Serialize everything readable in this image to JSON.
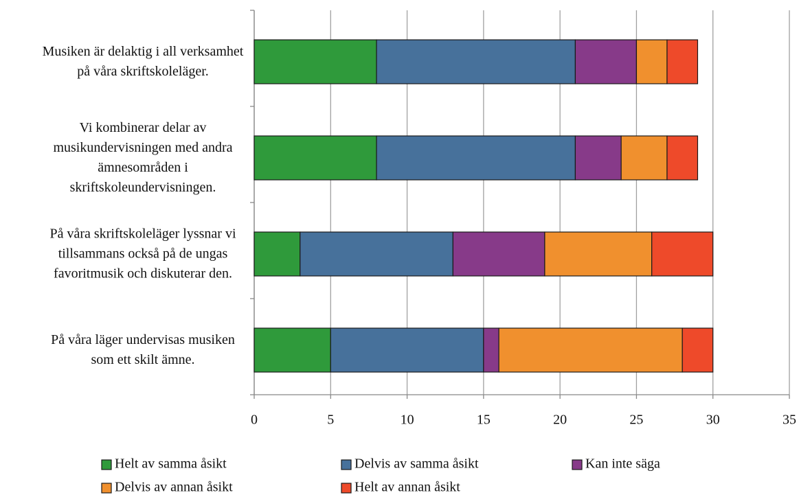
{
  "chart_data": {
    "type": "stacked-barh",
    "categories": [
      "Musiken är delaktig i all verksamhet på våra skriftskoleläger.",
      "Vi kombinerar delar av musikundervisningen med andra ämnesområden i skriftskoleundervisningen.",
      "På våra skriftskoleläger lyssnar vi tillsammans också på de ungas favoritmusik och diskuterar den.",
      "På våra läger undervisas musiken som ett skilt ämne."
    ],
    "series": [
      {
        "name": "Helt av samma åsikt",
        "color": "#2f9a3b",
        "values": [
          8,
          8,
          3,
          5
        ]
      },
      {
        "name": "Delvis av samma åsikt",
        "color": "#47719b",
        "values": [
          13,
          13,
          10,
          10
        ]
      },
      {
        "name": "Kan inte säga",
        "color": "#873a89",
        "values": [
          4,
          3,
          6,
          1
        ]
      },
      {
        "name": "Delvis av annan åsikt",
        "color": "#f0902e",
        "values": [
          2,
          3,
          7,
          12
        ]
      },
      {
        "name": "Helt av annan åsikt",
        "color": "#ee4a2a",
        "values": [
          2,
          2,
          4,
          2
        ]
      }
    ],
    "xlim": [
      0,
      35
    ],
    "xticks": [
      0,
      5,
      10,
      15,
      20,
      25,
      30,
      35
    ],
    "grid": true
  }
}
